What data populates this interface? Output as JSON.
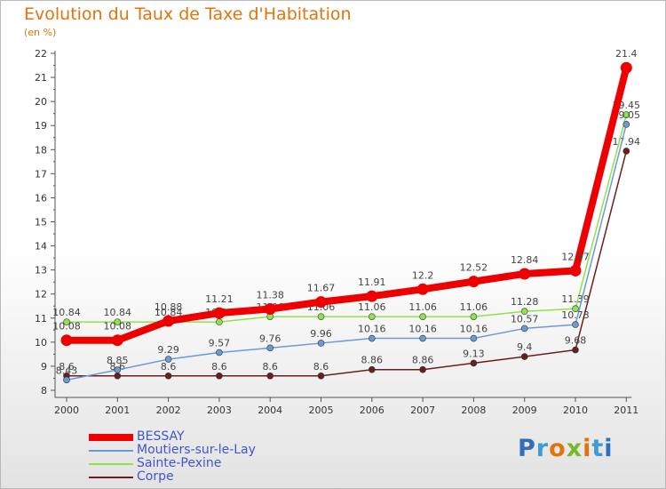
{
  "title": "Evolution du Taux de Taxe d'Habitation",
  "subtitle": "(en %)",
  "logo": {
    "letters": [
      {
        "ch": "P",
        "color": "#2f6fb8"
      },
      {
        "ch": "r",
        "color": "#3f9ad6"
      },
      {
        "ch": "o",
        "color": "#e1740f"
      },
      {
        "ch": "x",
        "color": "#78b828"
      },
      {
        "ch": "i",
        "color": "#e1740f"
      },
      {
        "ch": "t",
        "color": "#3f9ad6"
      },
      {
        "ch": "i",
        "color": "#2f6fb8"
      }
    ]
  },
  "chart_data": {
    "type": "line",
    "title": "Evolution du Taux de Taxe d'Habitation",
    "ylabel": "(en %)",
    "xlabel": "",
    "x": [
      "2000",
      "2001",
      "2002",
      "2003",
      "2004",
      "2005",
      "2006",
      "2007",
      "2008",
      "2009",
      "2010",
      "2011"
    ],
    "ylim": [
      8,
      22
    ],
    "yticks": [
      8,
      9,
      10,
      11,
      12,
      13,
      14,
      15,
      16,
      17,
      18,
      19,
      20,
      21,
      22
    ],
    "grid": false,
    "legend_position": "bottom-left",
    "series": [
      {
        "name": "Corpe",
        "color": "#6b1e1e",
        "values": [
          8.6,
          8.6,
          8.6,
          8.6,
          8.6,
          8.6,
          8.86,
          8.86,
          9.13,
          9.4,
          9.68,
          17.94
        ],
        "labels": [
          "8.6",
          "8.6",
          "8.6",
          "8.6",
          "8.6",
          "8.6",
          "8.86",
          "8.86",
          "9.13",
          "9.4",
          "9.68",
          "17.94"
        ]
      },
      {
        "name": "Sainte-Pexine",
        "color": "#8fe24a",
        "values": [
          10.84,
          10.84,
          10.84,
          10.84,
          11.06,
          11.06,
          11.06,
          11.06,
          11.06,
          11.28,
          11.39,
          19.45
        ],
        "labels": [
          "10.84",
          "10.84",
          "10.84",
          "10.84",
          "11.06",
          "11.06",
          "11.06",
          "11.06",
          "11.06",
          "11.28",
          "11.39",
          "19.45"
        ]
      },
      {
        "name": "Moutiers-sur-le-Lay",
        "color": "#6c9ad4",
        "values": [
          8.43,
          8.85,
          9.29,
          9.57,
          9.76,
          9.96,
          10.16,
          10.16,
          10.16,
          10.57,
          10.73,
          19.05
        ],
        "labels": [
          "8.43",
          "8.85",
          "9.29",
          "9.57",
          "9.76",
          "9.96",
          "10.16",
          "10.16",
          "10.16",
          "10.57",
          "10.73",
          "19.05"
        ]
      },
      {
        "name": "BESSAY",
        "color": "#ee0000",
        "values": [
          10.08,
          10.08,
          10.88,
          11.21,
          11.38,
          11.67,
          11.91,
          12.2,
          12.52,
          12.84,
          12.97,
          21.4
        ],
        "labels": [
          "10.08",
          "10.08",
          "10.88",
          "11.21",
          "11.38",
          "11.67",
          "11.91",
          "12.2",
          "12.52",
          "12.84",
          "12.97",
          "21.4"
        ]
      }
    ]
  },
  "legend": [
    {
      "name": "BESSAY",
      "color": "#ee0000"
    },
    {
      "name": "Moutiers-sur-le-Lay",
      "color": "#6c9ad4"
    },
    {
      "name": "Sainte-Pexine",
      "color": "#8fe24a"
    },
    {
      "name": "Corpe",
      "color": "#6b1e1e"
    }
  ]
}
